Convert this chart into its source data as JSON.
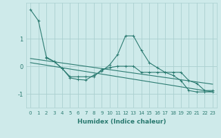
{
  "xlabel": "Humidex (Indice chaleur)",
  "background_color": "#ceeaea",
  "grid_color": "#aacfcf",
  "line_color": "#2a7a70",
  "xlim": [
    -0.5,
    23.5
  ],
  "ylim": [
    -1.5,
    2.3
  ],
  "yticks": [
    -1,
    0,
    1
  ],
  "xticks": [
    0,
    1,
    2,
    3,
    4,
    5,
    6,
    7,
    8,
    9,
    10,
    11,
    12,
    13,
    14,
    15,
    16,
    17,
    18,
    19,
    20,
    21,
    22,
    23
  ],
  "series": [
    {
      "x": [
        0,
        1,
        2,
        3,
        4,
        5,
        6,
        7,
        8,
        9,
        10,
        11,
        12,
        13,
        14,
        15,
        16,
        17,
        18,
        19,
        20,
        21,
        22,
        23
      ],
      "y": [
        2.05,
        1.65,
        0.33,
        0.17,
        -0.08,
        -0.42,
        -0.48,
        -0.5,
        -0.32,
        -0.18,
        0.05,
        0.42,
        1.1,
        1.1,
        0.58,
        0.13,
        -0.05,
        -0.22,
        -0.33,
        -0.52,
        -0.88,
        -0.93,
        -0.93,
        -0.93
      ],
      "marker": "+"
    },
    {
      "x": [
        2,
        3,
        4,
        5,
        6,
        7,
        8,
        9,
        10,
        11,
        12,
        13,
        14,
        15,
        16,
        17,
        18,
        19,
        20,
        21,
        22,
        23
      ],
      "y": [
        0.3,
        0.17,
        -0.08,
        -0.38,
        -0.38,
        -0.38,
        -0.38,
        -0.12,
        -0.05,
        0.0,
        0.0,
        0.0,
        -0.22,
        -0.22,
        -0.22,
        -0.22,
        -0.22,
        -0.22,
        -0.52,
        -0.62,
        -0.88,
        -0.88
      ],
      "marker": "+"
    },
    {
      "x": [
        0,
        23
      ],
      "y": [
        0.28,
        -0.65
      ],
      "marker": null
    },
    {
      "x": [
        0,
        23
      ],
      "y": [
        0.13,
        -0.93
      ],
      "marker": null
    }
  ]
}
